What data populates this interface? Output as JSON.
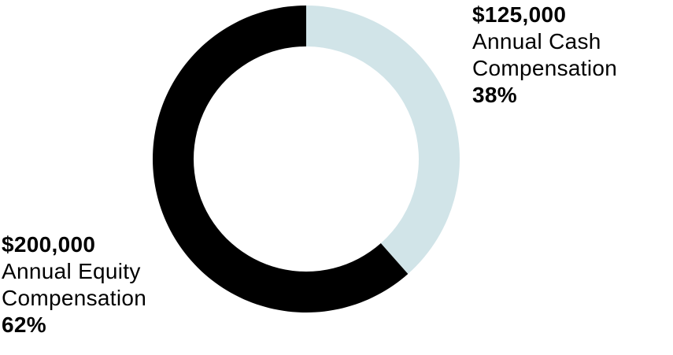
{
  "chart_data": {
    "type": "pie",
    "donut": true,
    "slices": [
      {
        "amount": "$125,000",
        "label_line1": "Annual Cash",
        "label_line2": "Compensation",
        "percent_label": "38%",
        "value": 125000,
        "percent": 38,
        "color": "#d1e4e8"
      },
      {
        "amount": "$200,000",
        "label_line1": "Annual Equity",
        "label_line2": "Compensation",
        "percent_label": "62%",
        "value": 200000,
        "percent": 62,
        "color": "#000000"
      }
    ]
  }
}
